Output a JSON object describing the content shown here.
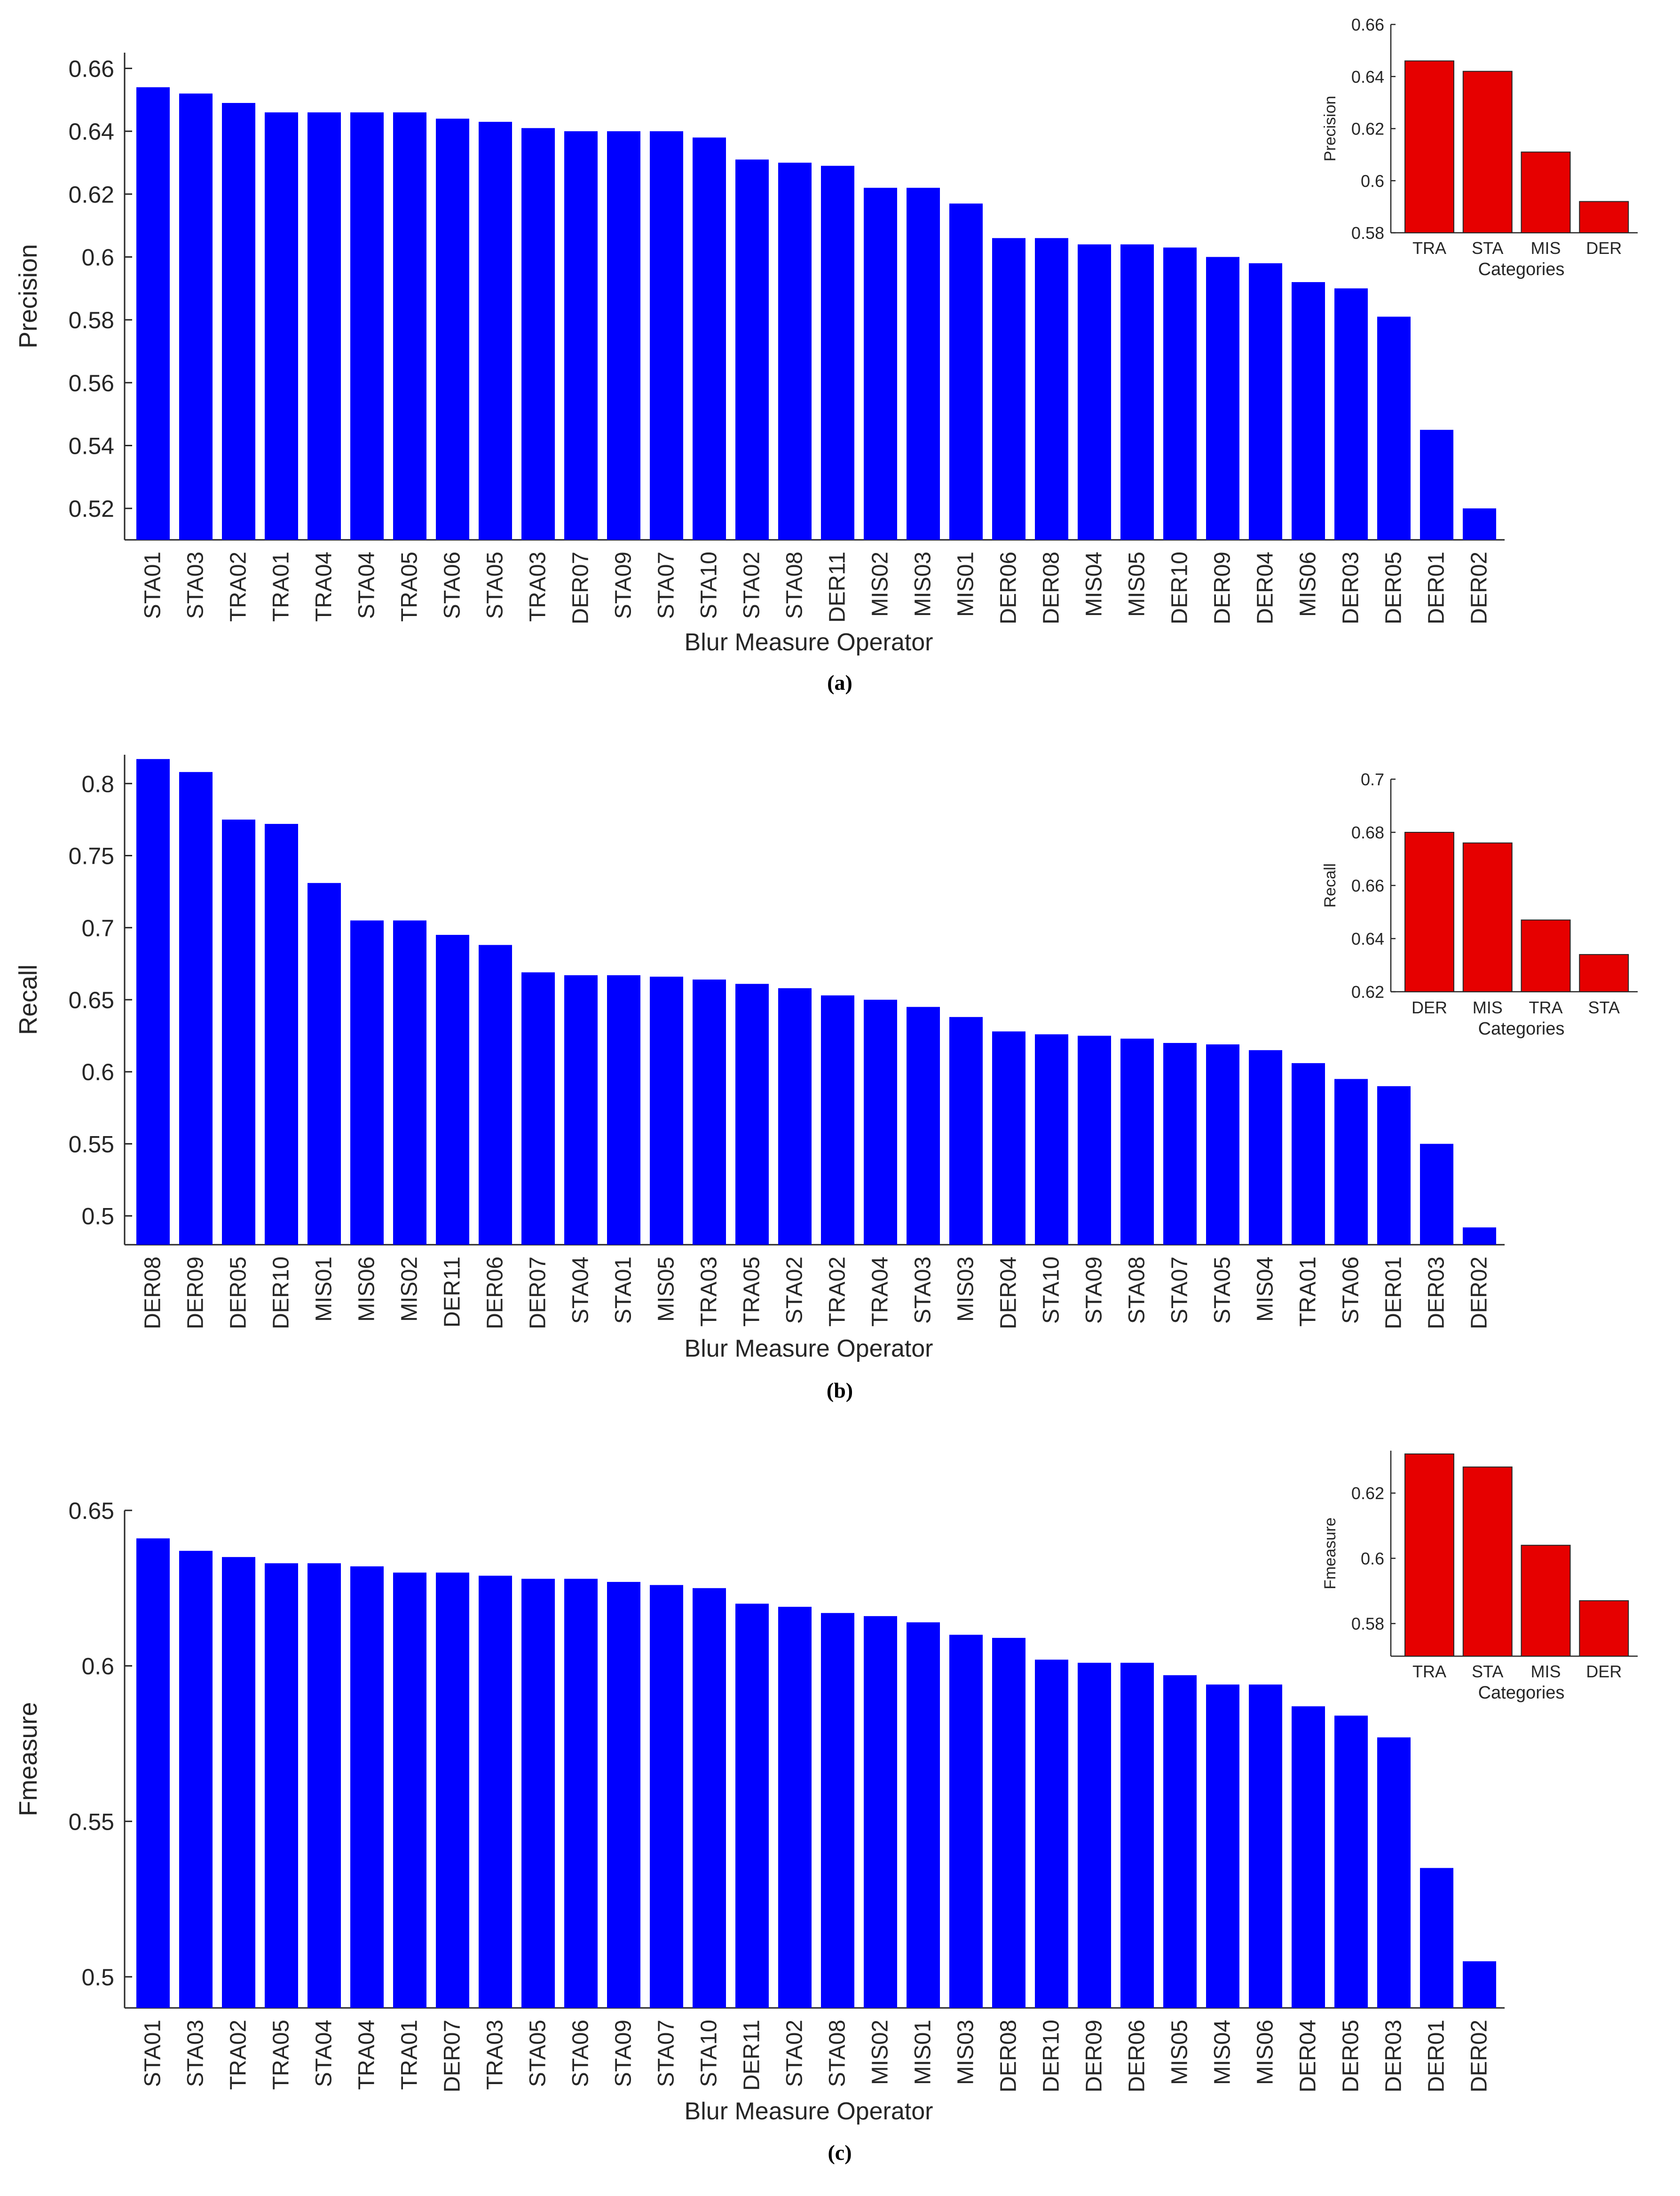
{
  "chart_data": [
    {
      "id": "a",
      "type": "bar",
      "panel_label": "(a)",
      "xlabel": "Blur Measure Operator",
      "ylabel": "Precision",
      "ylim": [
        0.51,
        0.665
      ],
      "yticks": [
        0.52,
        0.54,
        0.56,
        0.58,
        0.6,
        0.62,
        0.64,
        0.66
      ],
      "ytick_labels": [
        "0.52",
        "0.54",
        "0.56",
        "0.58",
        "0.6",
        "0.62",
        "0.64",
        "0.66"
      ],
      "bar_color": "#0000ff",
      "categories": [
        "STA01",
        "STA03",
        "TRA02",
        "TRA01",
        "TRA04",
        "STA04",
        "TRA05",
        "STA06",
        "STA05",
        "TRA03",
        "DER07",
        "STA09",
        "STA07",
        "STA10",
        "STA02",
        "STA08",
        "DER11",
        "MIS02",
        "MIS03",
        "MIS01",
        "DER06",
        "DER08",
        "MIS04",
        "MIS05",
        "DER10",
        "DER09",
        "DER04",
        "MIS06",
        "DER03",
        "DER05",
        "DER01",
        "DER02"
      ],
      "values": [
        0.654,
        0.652,
        0.649,
        0.646,
        0.646,
        0.646,
        0.646,
        0.644,
        0.643,
        0.641,
        0.64,
        0.64,
        0.64,
        0.638,
        0.631,
        0.63,
        0.629,
        0.622,
        0.622,
        0.617,
        0.606,
        0.606,
        0.604,
        0.604,
        0.603,
        0.6,
        0.598,
        0.592,
        0.59,
        0.581,
        0.545,
        0.52
      ],
      "inset": {
        "type": "bar",
        "xlabel": "Categories",
        "ylabel": "Precision",
        "ylim": [
          0.58,
          0.66
        ],
        "yticks": [
          0.58,
          0.6,
          0.62,
          0.64,
          0.66
        ],
        "ytick_labels": [
          "0.58",
          "0.6",
          "0.62",
          "0.64",
          "0.66"
        ],
        "bar_color": "#e60000",
        "categories": [
          "TRA",
          "STA",
          "MIS",
          "DER"
        ],
        "values": [
          0.646,
          0.642,
          0.611,
          0.592
        ]
      }
    },
    {
      "id": "b",
      "type": "bar",
      "panel_label": "(b)",
      "xlabel": "Blur Measure Operator",
      "ylabel": "Recall",
      "ylim": [
        0.48,
        0.82
      ],
      "yticks": [
        0.5,
        0.55,
        0.6,
        0.65,
        0.7,
        0.75,
        0.8
      ],
      "ytick_labels": [
        "0.5",
        "0.55",
        "0.6",
        "0.65",
        "0.7",
        "0.75",
        "0.8"
      ],
      "bar_color": "#0000ff",
      "categories": [
        "DER08",
        "DER09",
        "DER05",
        "DER10",
        "MIS01",
        "MIS06",
        "MIS02",
        "DER11",
        "DER06",
        "DER07",
        "STA04",
        "STA01",
        "MIS05",
        "TRA03",
        "TRA05",
        "STA02",
        "TRA02",
        "TRA04",
        "STA03",
        "MIS03",
        "DER04",
        "STA10",
        "STA09",
        "STA08",
        "STA07",
        "STA05",
        "MIS04",
        "TRA01",
        "STA06",
        "DER01",
        "DER03",
        "DER02"
      ],
      "values": [
        0.817,
        0.808,
        0.775,
        0.772,
        0.731,
        0.705,
        0.705,
        0.695,
        0.688,
        0.669,
        0.667,
        0.667,
        0.666,
        0.664,
        0.661,
        0.658,
        0.653,
        0.65,
        0.645,
        0.638,
        0.628,
        0.626,
        0.625,
        0.623,
        0.62,
        0.619,
        0.615,
        0.606,
        0.595,
        0.59,
        0.55,
        0.492
      ],
      "inset": {
        "type": "bar",
        "xlabel": "Categories",
        "ylabel": "Recall",
        "ylim": [
          0.62,
          0.7
        ],
        "yticks": [
          0.62,
          0.64,
          0.66,
          0.68,
          0.7
        ],
        "ytick_labels": [
          "0.62",
          "0.64",
          "0.66",
          "0.68",
          "0.7"
        ],
        "bar_color": "#e60000",
        "categories": [
          "DER",
          "MIS",
          "TRA",
          "STA"
        ],
        "values": [
          0.68,
          0.676,
          0.647,
          0.634
        ]
      }
    },
    {
      "id": "c",
      "type": "bar",
      "panel_label": "(c)",
      "xlabel": "Blur Measure Operator",
      "ylabel": "Fmeasure",
      "ylim": [
        0.49,
        0.65
      ],
      "yticks": [
        0.5,
        0.55,
        0.6,
        0.65
      ],
      "ytick_labels": [
        "0.5",
        "0.55",
        "0.6",
        "0.65"
      ],
      "bar_color": "#0000ff",
      "categories": [
        "STA01",
        "STA03",
        "TRA02",
        "TRA05",
        "STA04",
        "TRA04",
        "TRA01",
        "DER07",
        "TRA03",
        "STA05",
        "STA06",
        "STA09",
        "STA07",
        "STA10",
        "DER11",
        "STA02",
        "STA08",
        "MIS02",
        "MIS01",
        "MIS03",
        "DER08",
        "DER10",
        "DER09",
        "DER06",
        "MIS05",
        "MIS04",
        "MIS06",
        "DER04",
        "DER05",
        "DER03",
        "DER01",
        "DER02"
      ],
      "values": [
        0.641,
        0.637,
        0.635,
        0.633,
        0.633,
        0.632,
        0.63,
        0.63,
        0.629,
        0.628,
        0.628,
        0.627,
        0.626,
        0.625,
        0.62,
        0.619,
        0.617,
        0.616,
        0.614,
        0.61,
        0.609,
        0.602,
        0.601,
        0.601,
        0.597,
        0.594,
        0.594,
        0.587,
        0.584,
        0.577,
        0.535,
        0.505
      ],
      "inset": {
        "type": "bar",
        "xlabel": "Categories",
        "ylabel": "Fmeasure",
        "ylim": [
          0.57,
          0.633
        ],
        "yticks": [
          0.58,
          0.6,
          0.62
        ],
        "ytick_labels": [
          "0.58",
          "0.6",
          "0.62"
        ],
        "bar_color": "#e60000",
        "categories": [
          "TRA",
          "STA",
          "MIS",
          "DER"
        ],
        "values": [
          0.632,
          0.628,
          0.604,
          0.587
        ]
      }
    }
  ]
}
